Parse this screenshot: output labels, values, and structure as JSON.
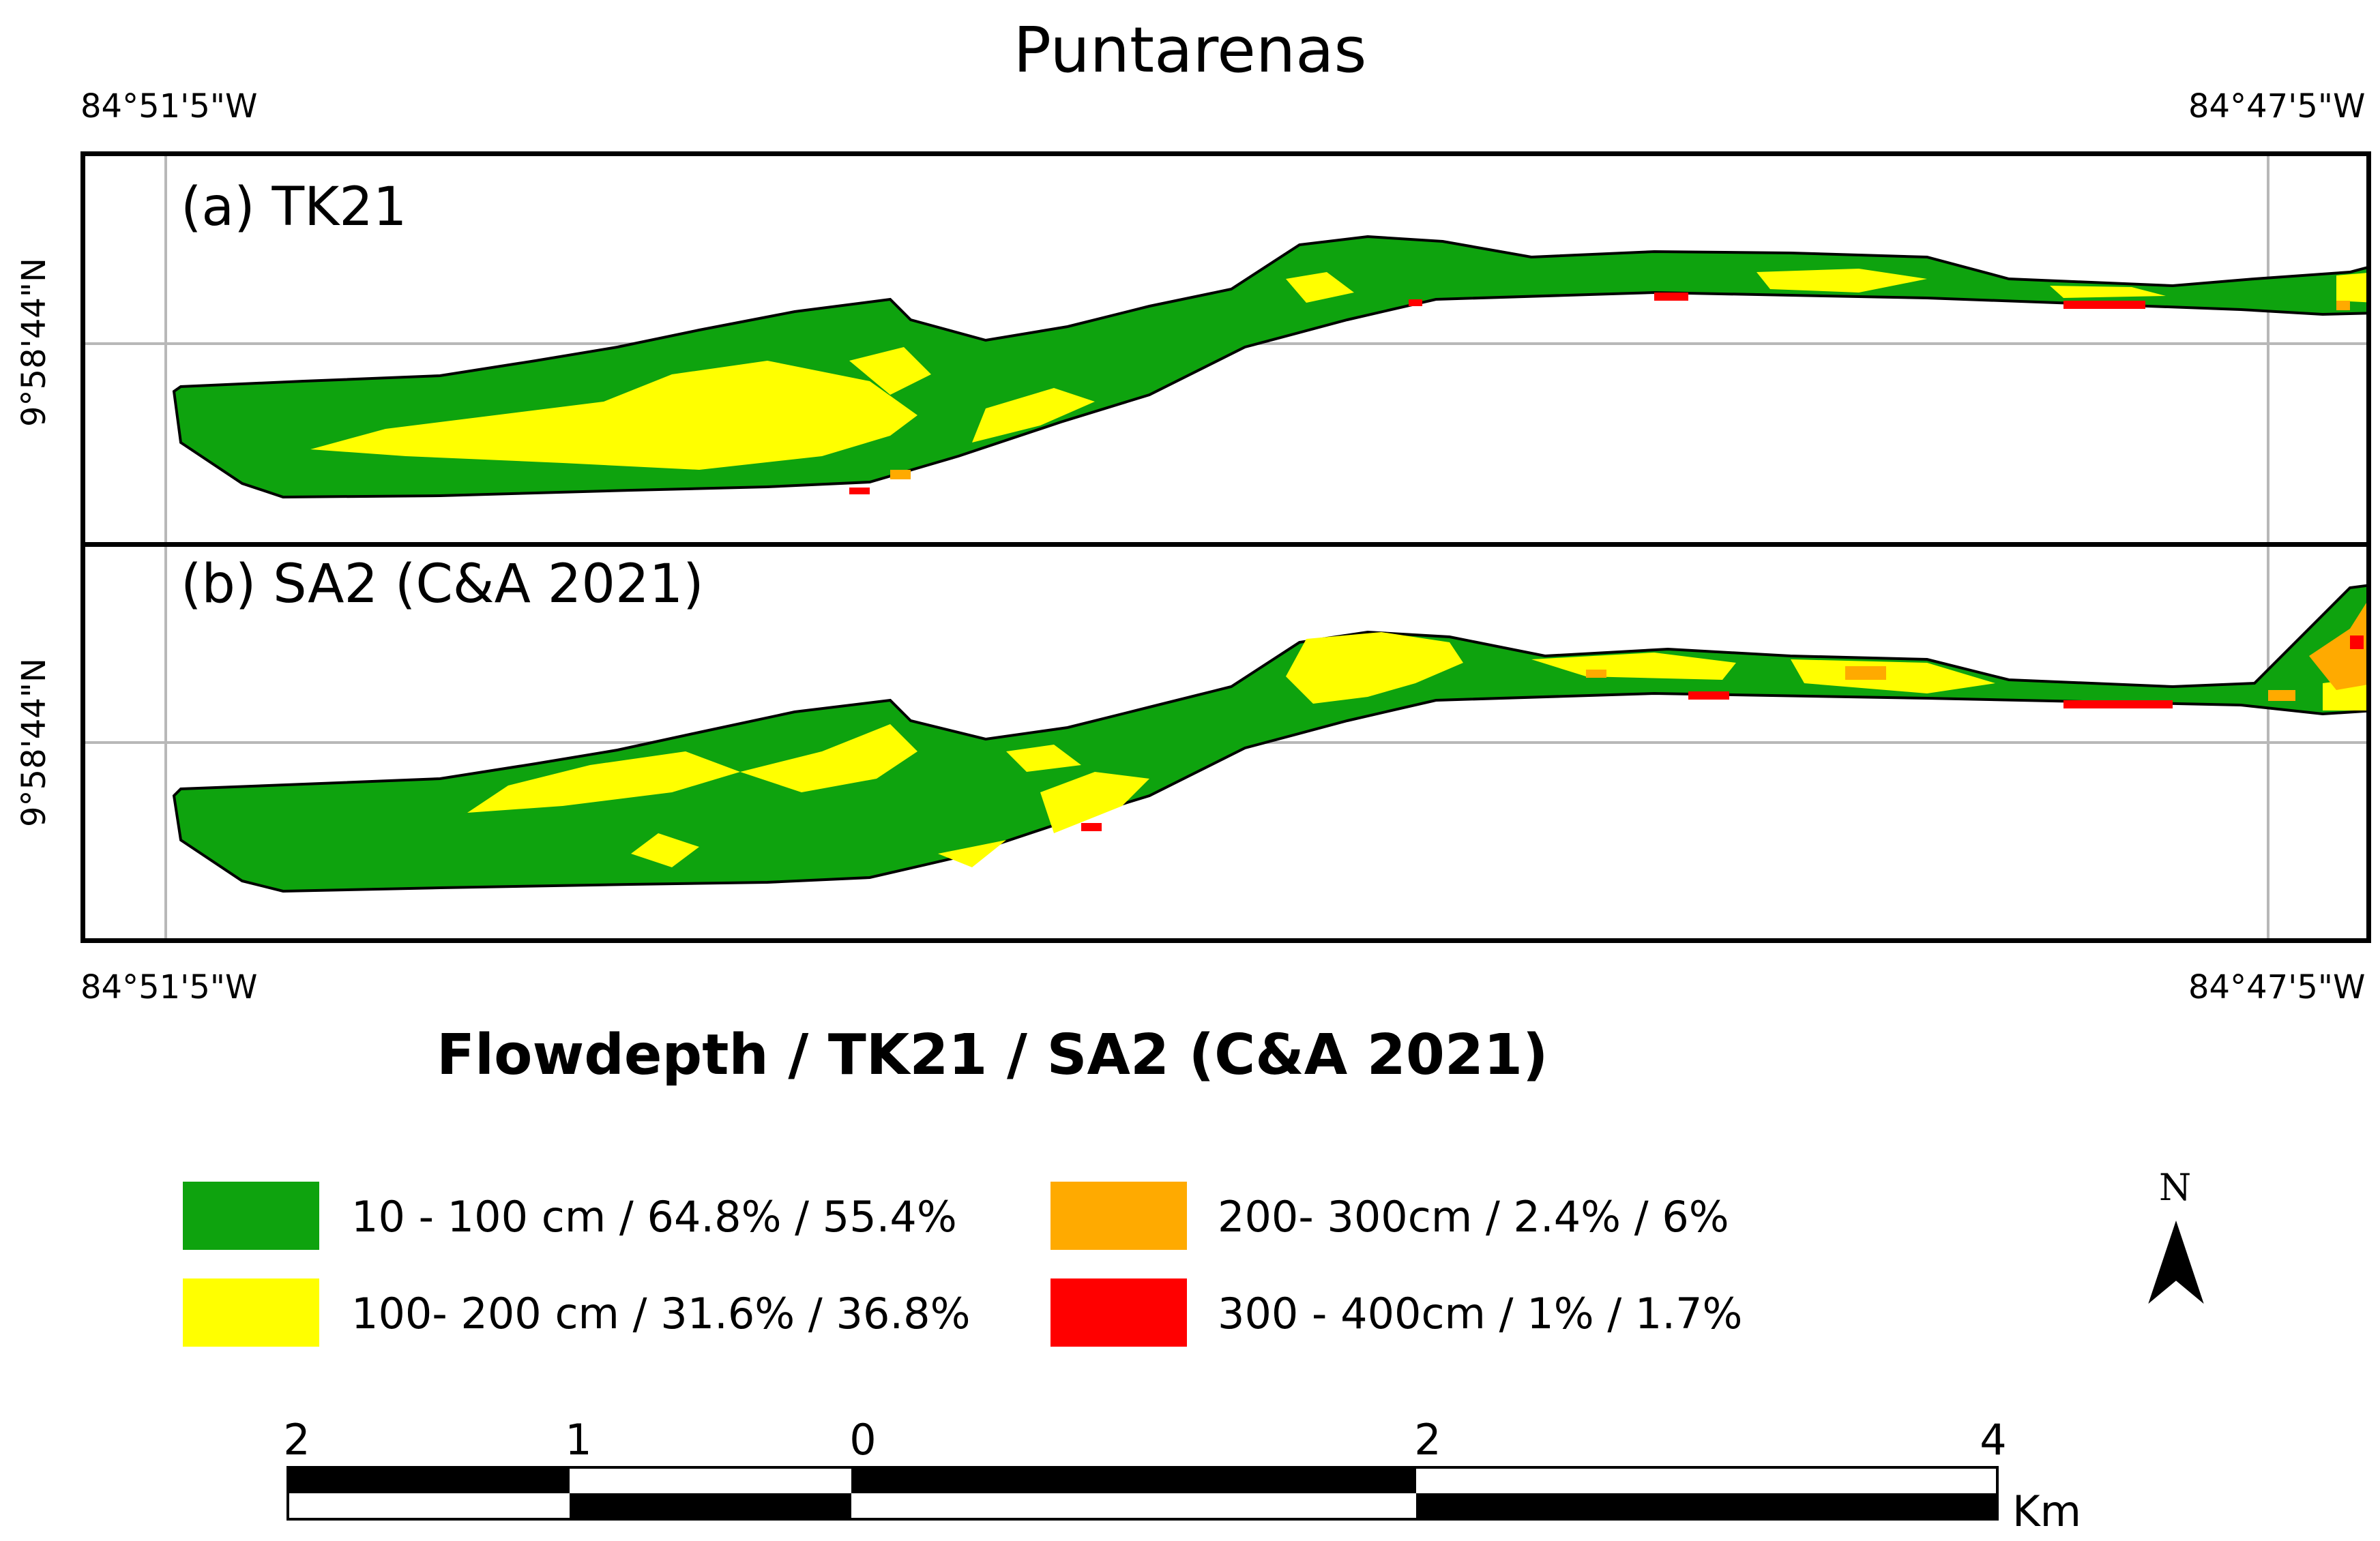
{
  "map_title": "Puntarenas",
  "coords": {
    "lon_left": "84°51'5\"W",
    "lon_right": "84°47'5\"W",
    "lat": "9°58'44\"N"
  },
  "panels": [
    {
      "label": "(a) TK21"
    },
    {
      "label": "(b) SA2 (C&A 2021)"
    }
  ],
  "legend": {
    "title": "Flowdepth / TK21  / SA2 (C&A 2021)",
    "items": [
      {
        "label": "10 - 100 cm / 64.8% / 55.4%",
        "color": "#0ea30e"
      },
      {
        "label": "100- 200 cm / 31.6% / 36.8%",
        "color": "#ffff00"
      },
      {
        "label": "200- 300cm  / 2.4% / 6%",
        "color": "#ffaa00"
      },
      {
        "label": "300 - 400cm  / 1% / 1.7%",
        "color": "#ff0000"
      }
    ]
  },
  "north_arrow": {
    "letter": "N",
    "icon": "north-arrow-icon"
  },
  "scale_bar": {
    "ticks": [
      "2",
      "1",
      "0",
      "2",
      "4"
    ],
    "unit": "Km"
  }
}
